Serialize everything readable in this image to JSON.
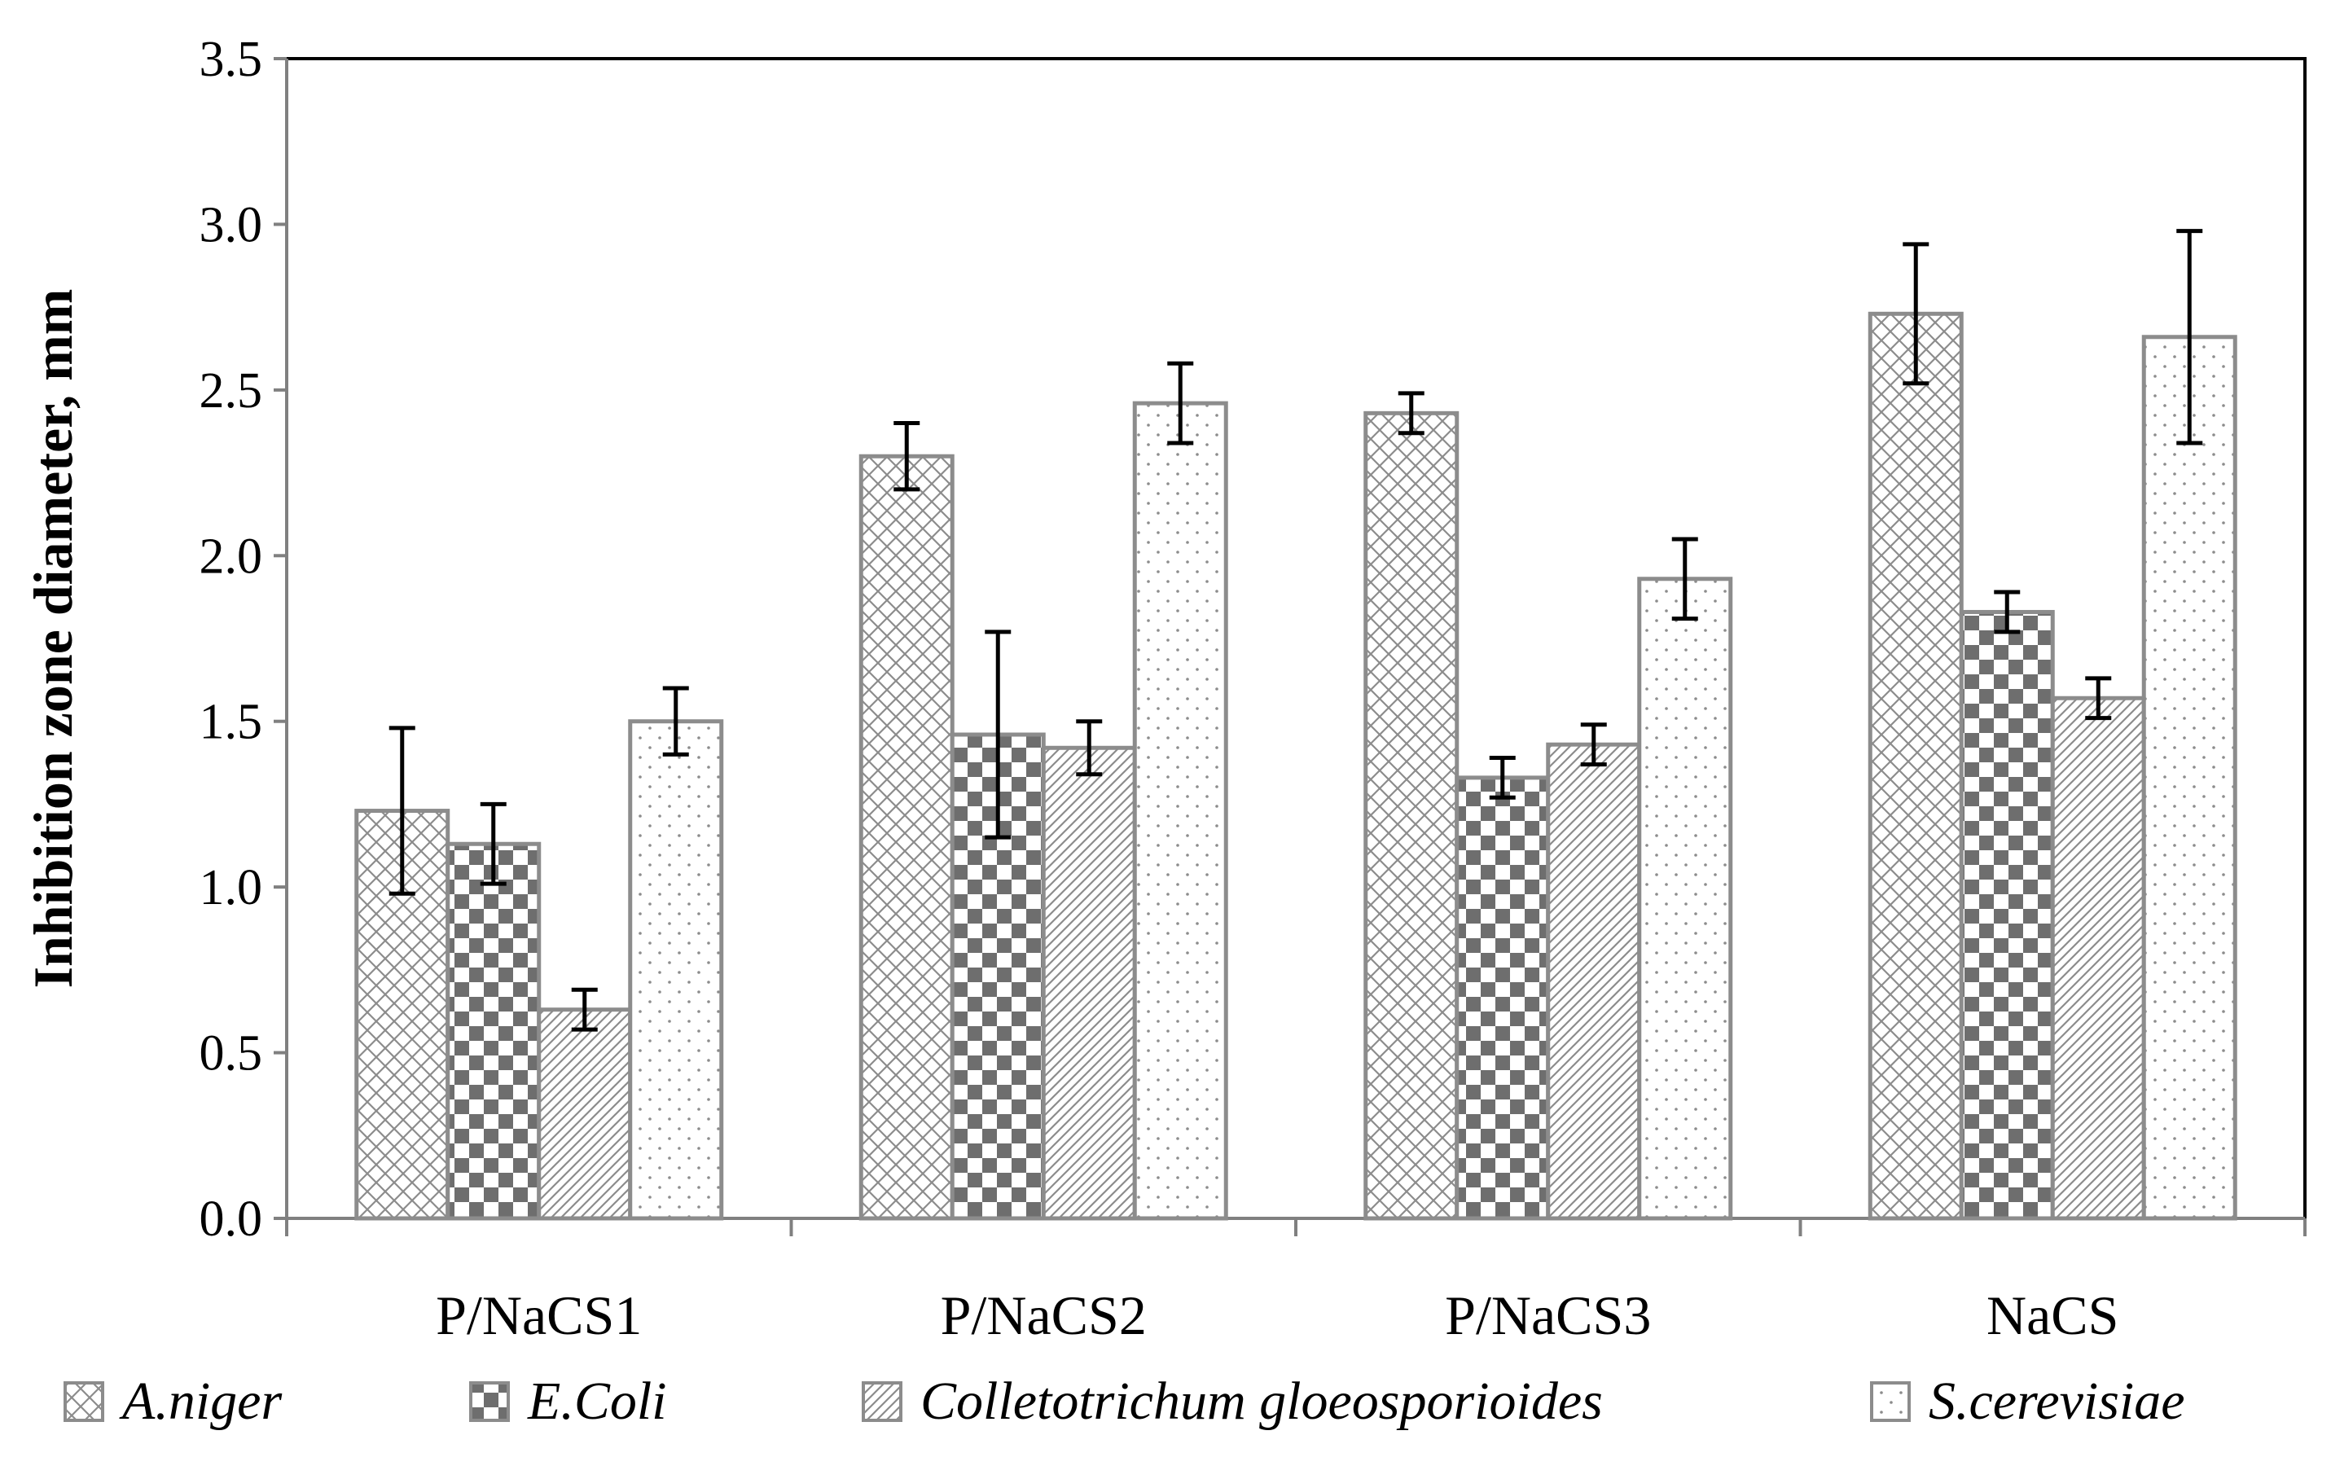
{
  "chart_data": {
    "type": "bar",
    "title": "",
    "xlabel": "",
    "ylabel": "Inhibition zone diameter, mm",
    "ylim": [
      0,
      3.5
    ],
    "yticks": [
      "0.0",
      "0.5",
      "1.0",
      "1.5",
      "2.0",
      "2.5",
      "3.0",
      "3.5"
    ],
    "ytick_values": [
      0,
      0.5,
      1.0,
      1.5,
      2.0,
      2.5,
      3.0,
      3.5
    ],
    "categories": [
      "P/NaCS1",
      "P/NaCS2",
      "P/NaCS3",
      "NaCS"
    ],
    "legend_position": "bottom",
    "grid": false,
    "series": [
      {
        "name": "A.niger",
        "pattern": "crosshatch",
        "values": [
          1.23,
          2.3,
          2.43,
          2.73
        ],
        "errors": [
          0.25,
          0.1,
          0.06,
          0.21
        ]
      },
      {
        "name": "E.Coli",
        "pattern": "checkerboard",
        "values": [
          1.13,
          1.46,
          1.33,
          1.83
        ],
        "errors": [
          0.12,
          0.31,
          0.06,
          0.06
        ]
      },
      {
        "name": "Colletotrichum gloeosporioides",
        "pattern": "diagonal",
        "values": [
          0.63,
          1.42,
          1.43,
          1.57
        ],
        "errors": [
          0.06,
          0.08,
          0.06,
          0.06
        ]
      },
      {
        "name": "S.cerevisiae",
        "pattern": "dots",
        "values": [
          1.5,
          2.46,
          1.93,
          2.66
        ],
        "errors": [
          0.1,
          0.12,
          0.12,
          0.32
        ]
      }
    ]
  },
  "colors": {
    "bar_outline": "#8c8c8c",
    "pattern_ink": "#8c8c8c",
    "checker_ink": "#6e6e6e",
    "error_bar": "#000000",
    "axis": "#808080",
    "frame": "#000000"
  }
}
